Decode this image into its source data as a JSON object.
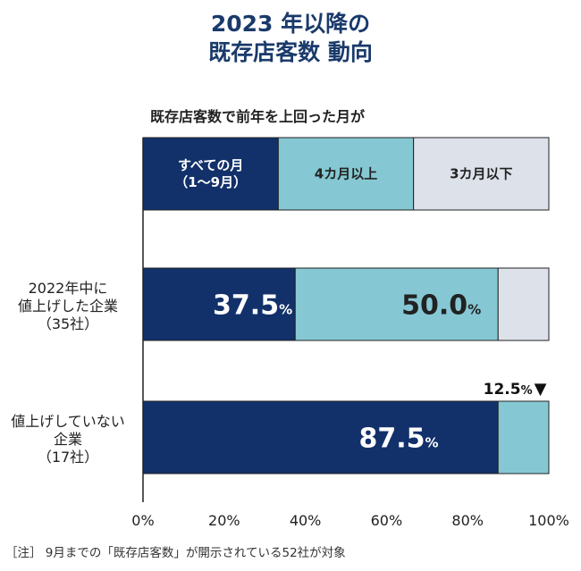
{
  "chart_data": {
    "type": "bar",
    "orientation": "horizontal",
    "stacked": true,
    "title": [
      "2023 年以降の",
      "既存店客数  動向"
    ],
    "legend_title": "既存店客数で前年を上回った月が",
    "legend_items": [
      {
        "lines": [
          "すべての月",
          "（1〜9月）"
        ],
        "color": "#12316a",
        "text_color": "#ffffff"
      },
      {
        "lines": [
          "4カ月以上"
        ],
        "color": "#85c8d3",
        "text_color": "#222222"
      },
      {
        "lines": [
          "3カ月以下"
        ],
        "color": "#dde1ea",
        "text_color": "#222222"
      }
    ],
    "categories": [
      {
        "lines": [
          "2022年中に",
          "値上げした企業",
          "（35社）"
        ]
      },
      {
        "lines": [
          "値上げしていない",
          "企業",
          "（17社）"
        ]
      }
    ],
    "series": [
      {
        "name": "すべての月（1〜9月）",
        "values": [
          37.5,
          87.5
        ],
        "labels": [
          "37.5",
          "87.5"
        ]
      },
      {
        "name": "4カ月以上",
        "values": [
          50.0,
          12.5
        ],
        "labels": [
          "50.0",
          ""
        ]
      },
      {
        "name": "3カ月以下",
        "values": [
          12.5,
          0.0
        ],
        "labels": [
          "",
          ""
        ]
      }
    ],
    "value_suffix": "%",
    "callout": {
      "value": "12.5",
      "suffix": "%",
      "marker": "▼"
    },
    "x_ticks": [
      "0%",
      "20%",
      "40%",
      "60%",
      "80%",
      "100%"
    ],
    "xlim": [
      0,
      100
    ]
  },
  "note": "［注］ 9月までの「既存店客数」が開示されている52社が対象"
}
